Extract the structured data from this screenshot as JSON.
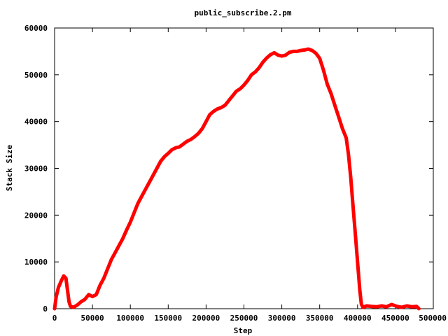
{
  "chart_data": {
    "type": "line",
    "title": "public_subscribe.2.pm",
    "xlabel": "Step",
    "ylabel": "Stack Size",
    "xlim": [
      0,
      500000
    ],
    "ylim": [
      0,
      60000
    ],
    "x_ticks": [
      "0",
      "50000",
      "100000",
      "150000",
      "200000",
      "250000",
      "300000",
      "350000",
      "400000",
      "450000",
      "500000"
    ],
    "y_ticks": [
      "0",
      "10000",
      "20000",
      "30000",
      "40000",
      "50000",
      "60000"
    ],
    "x_tick_values": [
      0,
      50000,
      100000,
      150000,
      200000,
      250000,
      300000,
      350000,
      400000,
      450000,
      500000
    ],
    "y_tick_values": [
      0,
      10000,
      20000,
      30000,
      40000,
      50000,
      60000
    ],
    "grid": false,
    "legend": "none",
    "series": [
      {
        "color": "#ff0000",
        "points": [
          [
            0,
            0
          ],
          [
            2000,
            2500
          ],
          [
            5000,
            4500
          ],
          [
            9000,
            6000
          ],
          [
            12000,
            7000
          ],
          [
            15000,
            6500
          ],
          [
            17000,
            4000
          ],
          [
            19000,
            1500
          ],
          [
            21000,
            500
          ],
          [
            25000,
            300
          ],
          [
            30000,
            800
          ],
          [
            35000,
            1500
          ],
          [
            40000,
            2000
          ],
          [
            45000,
            3000
          ],
          [
            50000,
            2600
          ],
          [
            55000,
            3000
          ],
          [
            60000,
            5000
          ],
          [
            65000,
            6500
          ],
          [
            70000,
            8500
          ],
          [
            75000,
            10500
          ],
          [
            80000,
            12000
          ],
          [
            85000,
            13500
          ],
          [
            90000,
            15000
          ],
          [
            95000,
            16800
          ],
          [
            100000,
            18500
          ],
          [
            105000,
            20500
          ],
          [
            110000,
            22500
          ],
          [
            115000,
            24000
          ],
          [
            120000,
            25500
          ],
          [
            125000,
            27000
          ],
          [
            130000,
            28500
          ],
          [
            135000,
            30000
          ],
          [
            140000,
            31500
          ],
          [
            145000,
            32500
          ],
          [
            150000,
            33200
          ],
          [
            155000,
            34000
          ],
          [
            160000,
            34400
          ],
          [
            165000,
            34600
          ],
          [
            170000,
            35200
          ],
          [
            175000,
            35800
          ],
          [
            180000,
            36200
          ],
          [
            185000,
            36800
          ],
          [
            190000,
            37500
          ],
          [
            195000,
            38500
          ],
          [
            200000,
            40000
          ],
          [
            205000,
            41500
          ],
          [
            210000,
            42200
          ],
          [
            215000,
            42700
          ],
          [
            220000,
            43000
          ],
          [
            225000,
            43500
          ],
          [
            230000,
            44500
          ],
          [
            235000,
            45500
          ],
          [
            240000,
            46500
          ],
          [
            245000,
            47000
          ],
          [
            250000,
            47800
          ],
          [
            255000,
            48800
          ],
          [
            260000,
            50000
          ],
          [
            265000,
            50600
          ],
          [
            270000,
            51500
          ],
          [
            275000,
            52700
          ],
          [
            280000,
            53600
          ],
          [
            285000,
            54300
          ],
          [
            290000,
            54700
          ],
          [
            295000,
            54200
          ],
          [
            300000,
            54000
          ],
          [
            305000,
            54200
          ],
          [
            310000,
            54800
          ],
          [
            315000,
            55000
          ],
          [
            320000,
            55000
          ],
          [
            325000,
            55200
          ],
          [
            330000,
            55300
          ],
          [
            335000,
            55500
          ],
          [
            340000,
            55200
          ],
          [
            345000,
            54600
          ],
          [
            350000,
            53500
          ],
          [
            355000,
            51000
          ],
          [
            360000,
            48000
          ],
          [
            365000,
            46000
          ],
          [
            370000,
            43500
          ],
          [
            375000,
            41000
          ],
          [
            380000,
            38500
          ],
          [
            385000,
            36500
          ],
          [
            388000,
            33000
          ],
          [
            391000,
            28000
          ],
          [
            394000,
            22000
          ],
          [
            397000,
            16000
          ],
          [
            400000,
            10000
          ],
          [
            403000,
            4000
          ],
          [
            405000,
            1000
          ],
          [
            407000,
            300
          ],
          [
            412000,
            600
          ],
          [
            418000,
            500
          ],
          [
            425000,
            400
          ],
          [
            432000,
            600
          ],
          [
            438000,
            400
          ],
          [
            445000,
            900
          ],
          [
            452000,
            500
          ],
          [
            458000,
            300
          ],
          [
            465000,
            600
          ],
          [
            472000,
            400
          ],
          [
            478000,
            500
          ],
          [
            481000,
            0
          ]
        ]
      }
    ]
  }
}
